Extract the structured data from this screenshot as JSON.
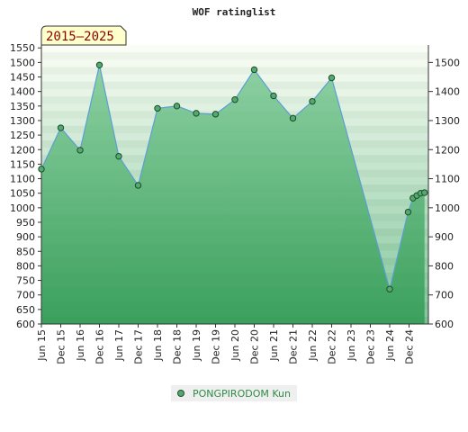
{
  "chart_data": {
    "type": "area",
    "title": "WOF ratinglist",
    "period_badge": "2015–2025",
    "y_left_ticks": [
      600,
      650,
      700,
      750,
      800,
      850,
      900,
      950,
      1000,
      1050,
      1100,
      1150,
      1200,
      1250,
      1300,
      1350,
      1400,
      1450,
      1500,
      1550
    ],
    "y_right_ticks": [
      600,
      700,
      800,
      900,
      1000,
      1100,
      1200,
      1300,
      1400,
      1500
    ],
    "ylim": [
      600,
      1560
    ],
    "x_tick_labels": [
      "Jun 15",
      "Dec 15",
      "Jun 16",
      "Dec 16",
      "Jun 17",
      "Dec 17",
      "Jun 18",
      "Dec 18",
      "Jun 19",
      "Dec 19",
      "Jun 20",
      "Dec 20",
      "Jun 21",
      "Dec 21",
      "Jun 22",
      "Dec 22",
      "Jun 23",
      "Dec 23",
      "Jun 24",
      "Dec 24"
    ],
    "series": [
      {
        "name": "PONGPIRODOM Kun",
        "x": [
          0,
          1,
          2,
          3,
          4,
          5,
          6,
          7,
          8,
          9,
          10,
          11,
          12,
          13,
          14,
          15,
          18,
          18.95,
          19.2,
          19.4,
          19.6,
          19.8
        ],
        "values": [
          1133,
          1275,
          1198,
          1491,
          1177,
          1077,
          1342,
          1350,
          1325,
          1322,
          1372,
          1475,
          1385,
          1308,
          1366,
          1447,
          720,
          985,
          1033,
          1042,
          1050,
          1052
        ]
      }
    ],
    "colors": {
      "line": "#5a9fd4",
      "marker": "#55a870",
      "marker_edge": "#1d4d2b",
      "fill_top": "#5cb87a",
      "fill_bottom": "#2f9a52",
      "badge_bg": "#ffffcc"
    },
    "legend_placement": "bottom-center",
    "grid": true
  }
}
